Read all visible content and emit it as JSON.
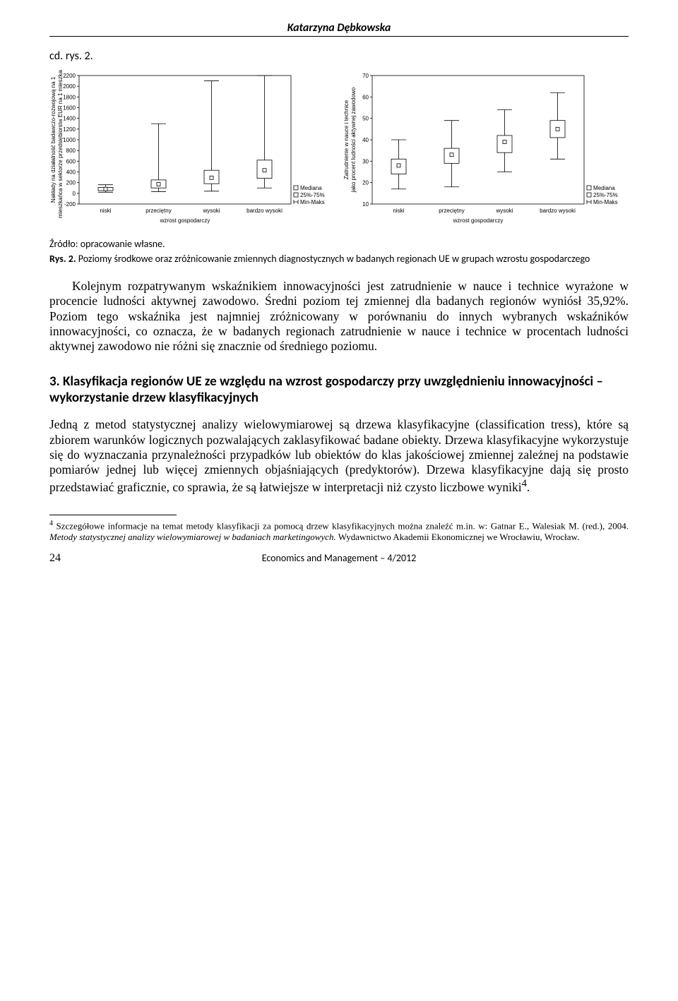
{
  "header_author": "Katarzyna Dębkowska",
  "fig_label": "cd. rys. 2.",
  "source_label": "Źródło: opracowanie własne.",
  "fig_caption_bold": "Rys. 2.",
  "fig_caption_text": "Poziomy środkowe oraz zróżnicowanie zmiennych diagnostycznych w badanych regionach UE w grupach wzrostu gospodarczego",
  "body_p1": "Kolejnym rozpatrywanym wskaźnikiem innowacyjności jest zatrudnienie w nauce i technice wyrażone w procencie ludności aktywnej zawodowo. Średni poziom tej zmiennej dla badanych regionów wyniósł 35,92%. Poziom tego wskaźnika jest najmniej zróżnicowany w porównaniu do innych wybranych wskaźników innowacyjności, co oznacza, że w badanych regionach zatrudnienie w nauce i technice w procentach ludności aktywnej zawodowo nie różni się znacznie od średniego poziomu.",
  "section_heading": "3. Klasyfikacja regionów UE ze względu na wzrost gospodarczy przy uwzględnieniu innowacyjności – wykorzystanie drzew klasyfikacyjnych",
  "body_p2": "Jedną z metod statystycznej analizy wielowymiarowej są drzewa klasyfikacyjne (classification tress), które są zbiorem warunków logicznych pozwalających zaklasyfikować badane obiekty. Drzewa klasyfikacyjne wykorzystuje się do wyznaczania przynależności przypadków lub obiektów do klas jakościowej zmiennej zależnej na podstawie pomiarów jednej lub więcej zmiennych objaśniających (predyktorów). Drzewa klasyfikacyjne dają się prosto przedstawiać graficznie, co sprawia, że są łatwiejsze w interpretacji niż czysto liczbowe wyniki",
  "body_p2_footref": "4",
  "body_p2_tail": ".",
  "footnote_ref": "4",
  "footnote_text": " Szczegółowe informacje na temat metody klasyfikacji za pomocą drzew klasyfikacyjnych można znaleźć m.in. w: Gatnar E., Walesiak M. (red.), 2004. ",
  "footnote_italic": "Metody statystycznej analizy wielowymiarowej w badaniach marketingowych.",
  "footnote_tail": " Wydawnictwo Akademii Ekonomicznej we Wrocławiu, Wrocław.",
  "page_number": "24",
  "footer_journal": "Economics and Management – 4/2012",
  "chart_left": {
    "type": "boxplot",
    "ylabel": "Nakłady na działalność badawczo-rozwojową na 1 mieszkańca w sektorze przedsiębiorstw EUR na 1 mieszkańca",
    "xlabel": "wzrost gospodarczy",
    "categories": [
      "niski",
      "przeciętny",
      "wysoki",
      "bardzo wysoki"
    ],
    "ylim": [
      -200,
      2200
    ],
    "ytick_step": 200,
    "yticks": [
      -200,
      0,
      200,
      400,
      600,
      800,
      1000,
      1200,
      1400,
      1600,
      1800,
      2000,
      2200
    ],
    "boxes": [
      {
        "min": 20,
        "q1": 50,
        "median": 80,
        "q3": 110,
        "max": 160
      },
      {
        "min": 30,
        "q1": 100,
        "median": 170,
        "q3": 250,
        "max": 1300
      },
      {
        "min": 40,
        "q1": 180,
        "median": 290,
        "q3": 430,
        "max": 2100
      },
      {
        "min": 100,
        "q1": 280,
        "median": 430,
        "q3": 620,
        "max": 2200
      }
    ],
    "legend": [
      "Mediana",
      "25%-75%",
      "Min-Maks"
    ],
    "frame_color": "#000000",
    "background": "#ffffff",
    "axis_fontsize": 8
  },
  "chart_right": {
    "type": "boxplot",
    "ylabel": "Zatrudnienie w nauce i technice jako procent ludności aktywnej zawodowo",
    "xlabel": "wzrost gospodarczy",
    "categories": [
      "niski",
      "przeciętny",
      "wysoki",
      "bardzo wysoki"
    ],
    "ylim": [
      10,
      70
    ],
    "ytick_step": 10,
    "yticks": [
      10,
      20,
      30,
      40,
      50,
      60,
      70
    ],
    "boxes": [
      {
        "min": 17,
        "q1": 24,
        "median": 28,
        "q3": 31,
        "max": 40
      },
      {
        "min": 18,
        "q1": 29,
        "median": 33,
        "q3": 36,
        "max": 49
      },
      {
        "min": 25,
        "q1": 34,
        "median": 39,
        "q3": 42,
        "max": 54
      },
      {
        "min": 31,
        "q1": 41,
        "median": 45,
        "q3": 49,
        "max": 62
      }
    ],
    "legend": [
      "Mediana",
      "25%-75%",
      "Min-Maks"
    ],
    "frame_color": "#000000",
    "background": "#ffffff",
    "axis_fontsize": 8
  }
}
